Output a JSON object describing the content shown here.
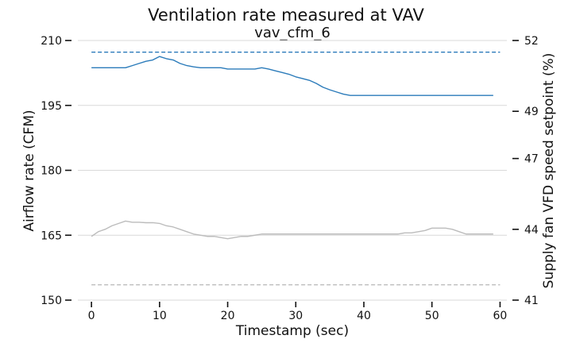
{
  "chart_data": {
    "type": "line",
    "title": "Ventilation rate measured at VAV",
    "subtitle": "vav_cfm_6",
    "xlabel": "Timestamp (sec)",
    "ylabel": "Airflow rate (CFM)",
    "y2label": "Supply fan VFD speed setpoint (%)",
    "xlim": [
      -2,
      61
    ],
    "ylim": [
      150,
      210
    ],
    "y2lim": [
      41,
      52
    ],
    "x_ticks": [
      0,
      10,
      20,
      30,
      40,
      50,
      60
    ],
    "y_ticks": [
      150,
      165,
      180,
      195,
      210
    ],
    "y2_ticks": [
      41,
      44,
      47,
      49,
      52
    ],
    "grid": "horizontal",
    "series": [
      {
        "axis": "left",
        "color": "#2b7bba",
        "style": "solid",
        "x": [
          0,
          1,
          2,
          3,
          4,
          5,
          6,
          7,
          8,
          9,
          10,
          11,
          12,
          13,
          14,
          15,
          16,
          17,
          18,
          19,
          20,
          21,
          22,
          23,
          24,
          25,
          26,
          27,
          28,
          29,
          30,
          31,
          32,
          33,
          34,
          35,
          36,
          37,
          38,
          39,
          40,
          41,
          42,
          43,
          44,
          45,
          46,
          47,
          48,
          49,
          50,
          51,
          52,
          53,
          54,
          55,
          56,
          57,
          58,
          59
        ],
        "values": [
          203.7,
          203.7,
          203.7,
          203.7,
          203.7,
          203.7,
          204.2,
          204.7,
          205.2,
          205.5,
          206.3,
          205.8,
          205.5,
          204.7,
          204.2,
          203.9,
          203.7,
          203.7,
          203.7,
          203.7,
          203.4,
          203.4,
          203.4,
          203.4,
          203.4,
          203.7,
          203.4,
          203.0,
          202.6,
          202.2,
          201.6,
          201.2,
          200.8,
          200.1,
          199.2,
          198.6,
          198.1,
          197.6,
          197.3,
          197.3,
          197.3,
          197.3,
          197.3,
          197.3,
          197.3,
          197.3,
          197.3,
          197.3,
          197.3,
          197.3,
          197.3,
          197.3,
          197.3,
          197.3,
          197.3,
          197.3,
          197.3,
          197.3,
          197.3,
          197.3
        ]
      },
      {
        "axis": "left",
        "color": "#2b7bba",
        "style": "dashed",
        "x": [
          0,
          60
        ],
        "values": [
          207.3,
          207.3
        ]
      },
      {
        "axis": "right",
        "color": "#bcbcbc",
        "style": "solid",
        "x": [
          0,
          1,
          2,
          3,
          4,
          5,
          6,
          7,
          8,
          9,
          10,
          11,
          12,
          13,
          14,
          15,
          16,
          17,
          18,
          19,
          20,
          21,
          22,
          23,
          24,
          25,
          26,
          27,
          28,
          29,
          30,
          31,
          32,
          33,
          34,
          35,
          36,
          37,
          38,
          39,
          40,
          41,
          42,
          43,
          44,
          45,
          46,
          47,
          48,
          49,
          50,
          51,
          52,
          53,
          54,
          55,
          56,
          57,
          58,
          59
        ],
        "values": [
          43.7,
          43.9,
          44.0,
          44.15,
          44.25,
          44.35,
          44.3,
          44.3,
          44.28,
          44.28,
          44.25,
          44.15,
          44.1,
          44.0,
          43.9,
          43.8,
          43.75,
          43.7,
          43.7,
          43.65,
          43.6,
          43.65,
          43.7,
          43.7,
          43.75,
          43.8,
          43.8,
          43.8,
          43.8,
          43.8,
          43.8,
          43.8,
          43.8,
          43.8,
          43.8,
          43.8,
          43.8,
          43.8,
          43.8,
          43.8,
          43.8,
          43.8,
          43.8,
          43.8,
          43.8,
          43.8,
          43.85,
          43.85,
          43.9,
          43.95,
          44.05,
          44.05,
          44.05,
          44.0,
          43.9,
          43.8,
          43.8,
          43.8,
          43.8,
          43.8
        ]
      },
      {
        "axis": "right",
        "color": "#bcbcbc",
        "style": "dashed",
        "x": [
          0,
          60
        ],
        "values": [
          41.65,
          41.65
        ]
      }
    ]
  }
}
